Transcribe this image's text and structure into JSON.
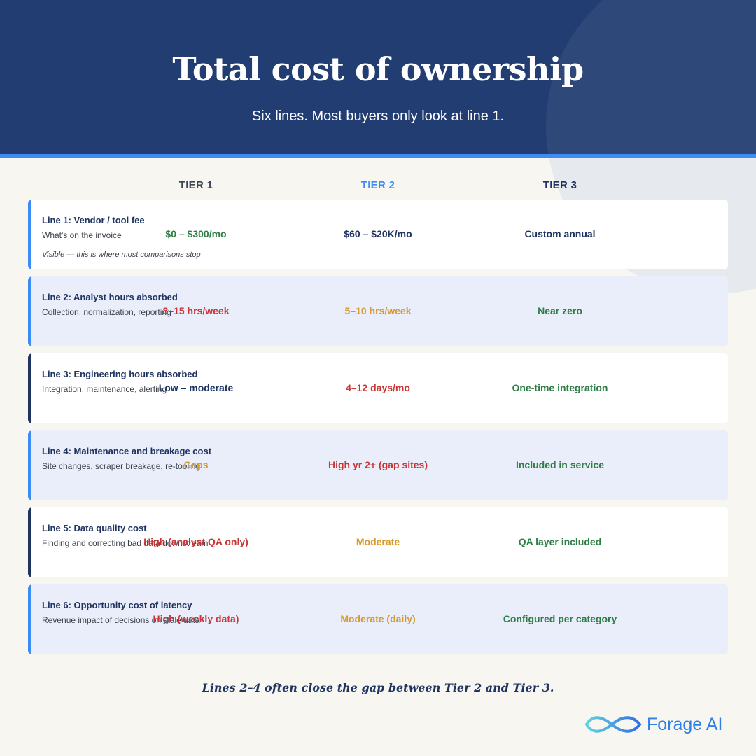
{
  "header": {
    "title": "Total cost of ownership",
    "subtitle": "Six lines. Most buyers only look at line 1."
  },
  "columns": [
    "TIER 1",
    "TIER 2",
    "TIER 3"
  ],
  "colors": {
    "navy": "#1e3360",
    "accent_blue": "#3b8cf5",
    "green": "#2e7d46",
    "red": "#c93434",
    "amber": "#d69a2c"
  },
  "rows": [
    {
      "title": "Line 1: Vendor / tool fee",
      "description": "What's on the invoice",
      "note": "Visible — this is where most comparisons stop",
      "values": [
        {
          "text": "$0 – $300/mo",
          "color": "#2e7d46"
        },
        {
          "text": "$60 – $20K/mo",
          "color": "#1e3360"
        },
        {
          "text": "Custom annual",
          "color": "#1e3360"
        }
      ]
    },
    {
      "title": "Line 2: Analyst hours absorbed",
      "description": "Collection, normalization, reporting",
      "note": "",
      "values": [
        {
          "text": "8–15 hrs/week",
          "color": "#c93434"
        },
        {
          "text": "5–10 hrs/week",
          "color": "#d69a2c"
        },
        {
          "text": "Near zero",
          "color": "#2e7d46"
        }
      ]
    },
    {
      "title": "Line 3: Engineering hours absorbed",
      "description": "Integration, maintenance, alerting",
      "note": "",
      "values": [
        {
          "text": "Low – moderate",
          "color": "#1e3360"
        },
        {
          "text": "4–12 days/mo",
          "color": "#c93434"
        },
        {
          "text": "One-time integration",
          "color": "#2e7d46"
        }
      ]
    },
    {
      "title": "Line 4: Maintenance and breakage cost",
      "description": "Site changes, scraper breakage, re-tooling",
      "note": "",
      "values": [
        {
          "text": "Gaps",
          "color": "#d69a2c"
        },
        {
          "text": "High yr 2+ (gap sites)",
          "color": "#c93434"
        },
        {
          "text": "Included in service",
          "color": "#2e7d46"
        }
      ]
    },
    {
      "title": "Line 5: Data quality cost",
      "description": "Finding and correcting bad data downstream",
      "note": "",
      "values": [
        {
          "text": "High (analyst QA only)",
          "color": "#c93434"
        },
        {
          "text": "Moderate",
          "color": "#d69a2c"
        },
        {
          "text": "QA layer included",
          "color": "#2e7d46"
        }
      ]
    },
    {
      "title": "Line 6: Opportunity cost of latency",
      "description": "Revenue impact of decisions on stale data",
      "note": "",
      "values": [
        {
          "text": "High (weekly data)",
          "color": "#c93434"
        },
        {
          "text": "Moderate (daily)",
          "color": "#d69a2c"
        },
        {
          "text": "Configured per category",
          "color": "#2e7d46"
        }
      ]
    }
  ],
  "footer": "Lines 2–4 often close the gap between Tier 2 and Tier 3.",
  "logo": {
    "text": "Forage AI",
    "icon": "infinity-logo-icon"
  }
}
